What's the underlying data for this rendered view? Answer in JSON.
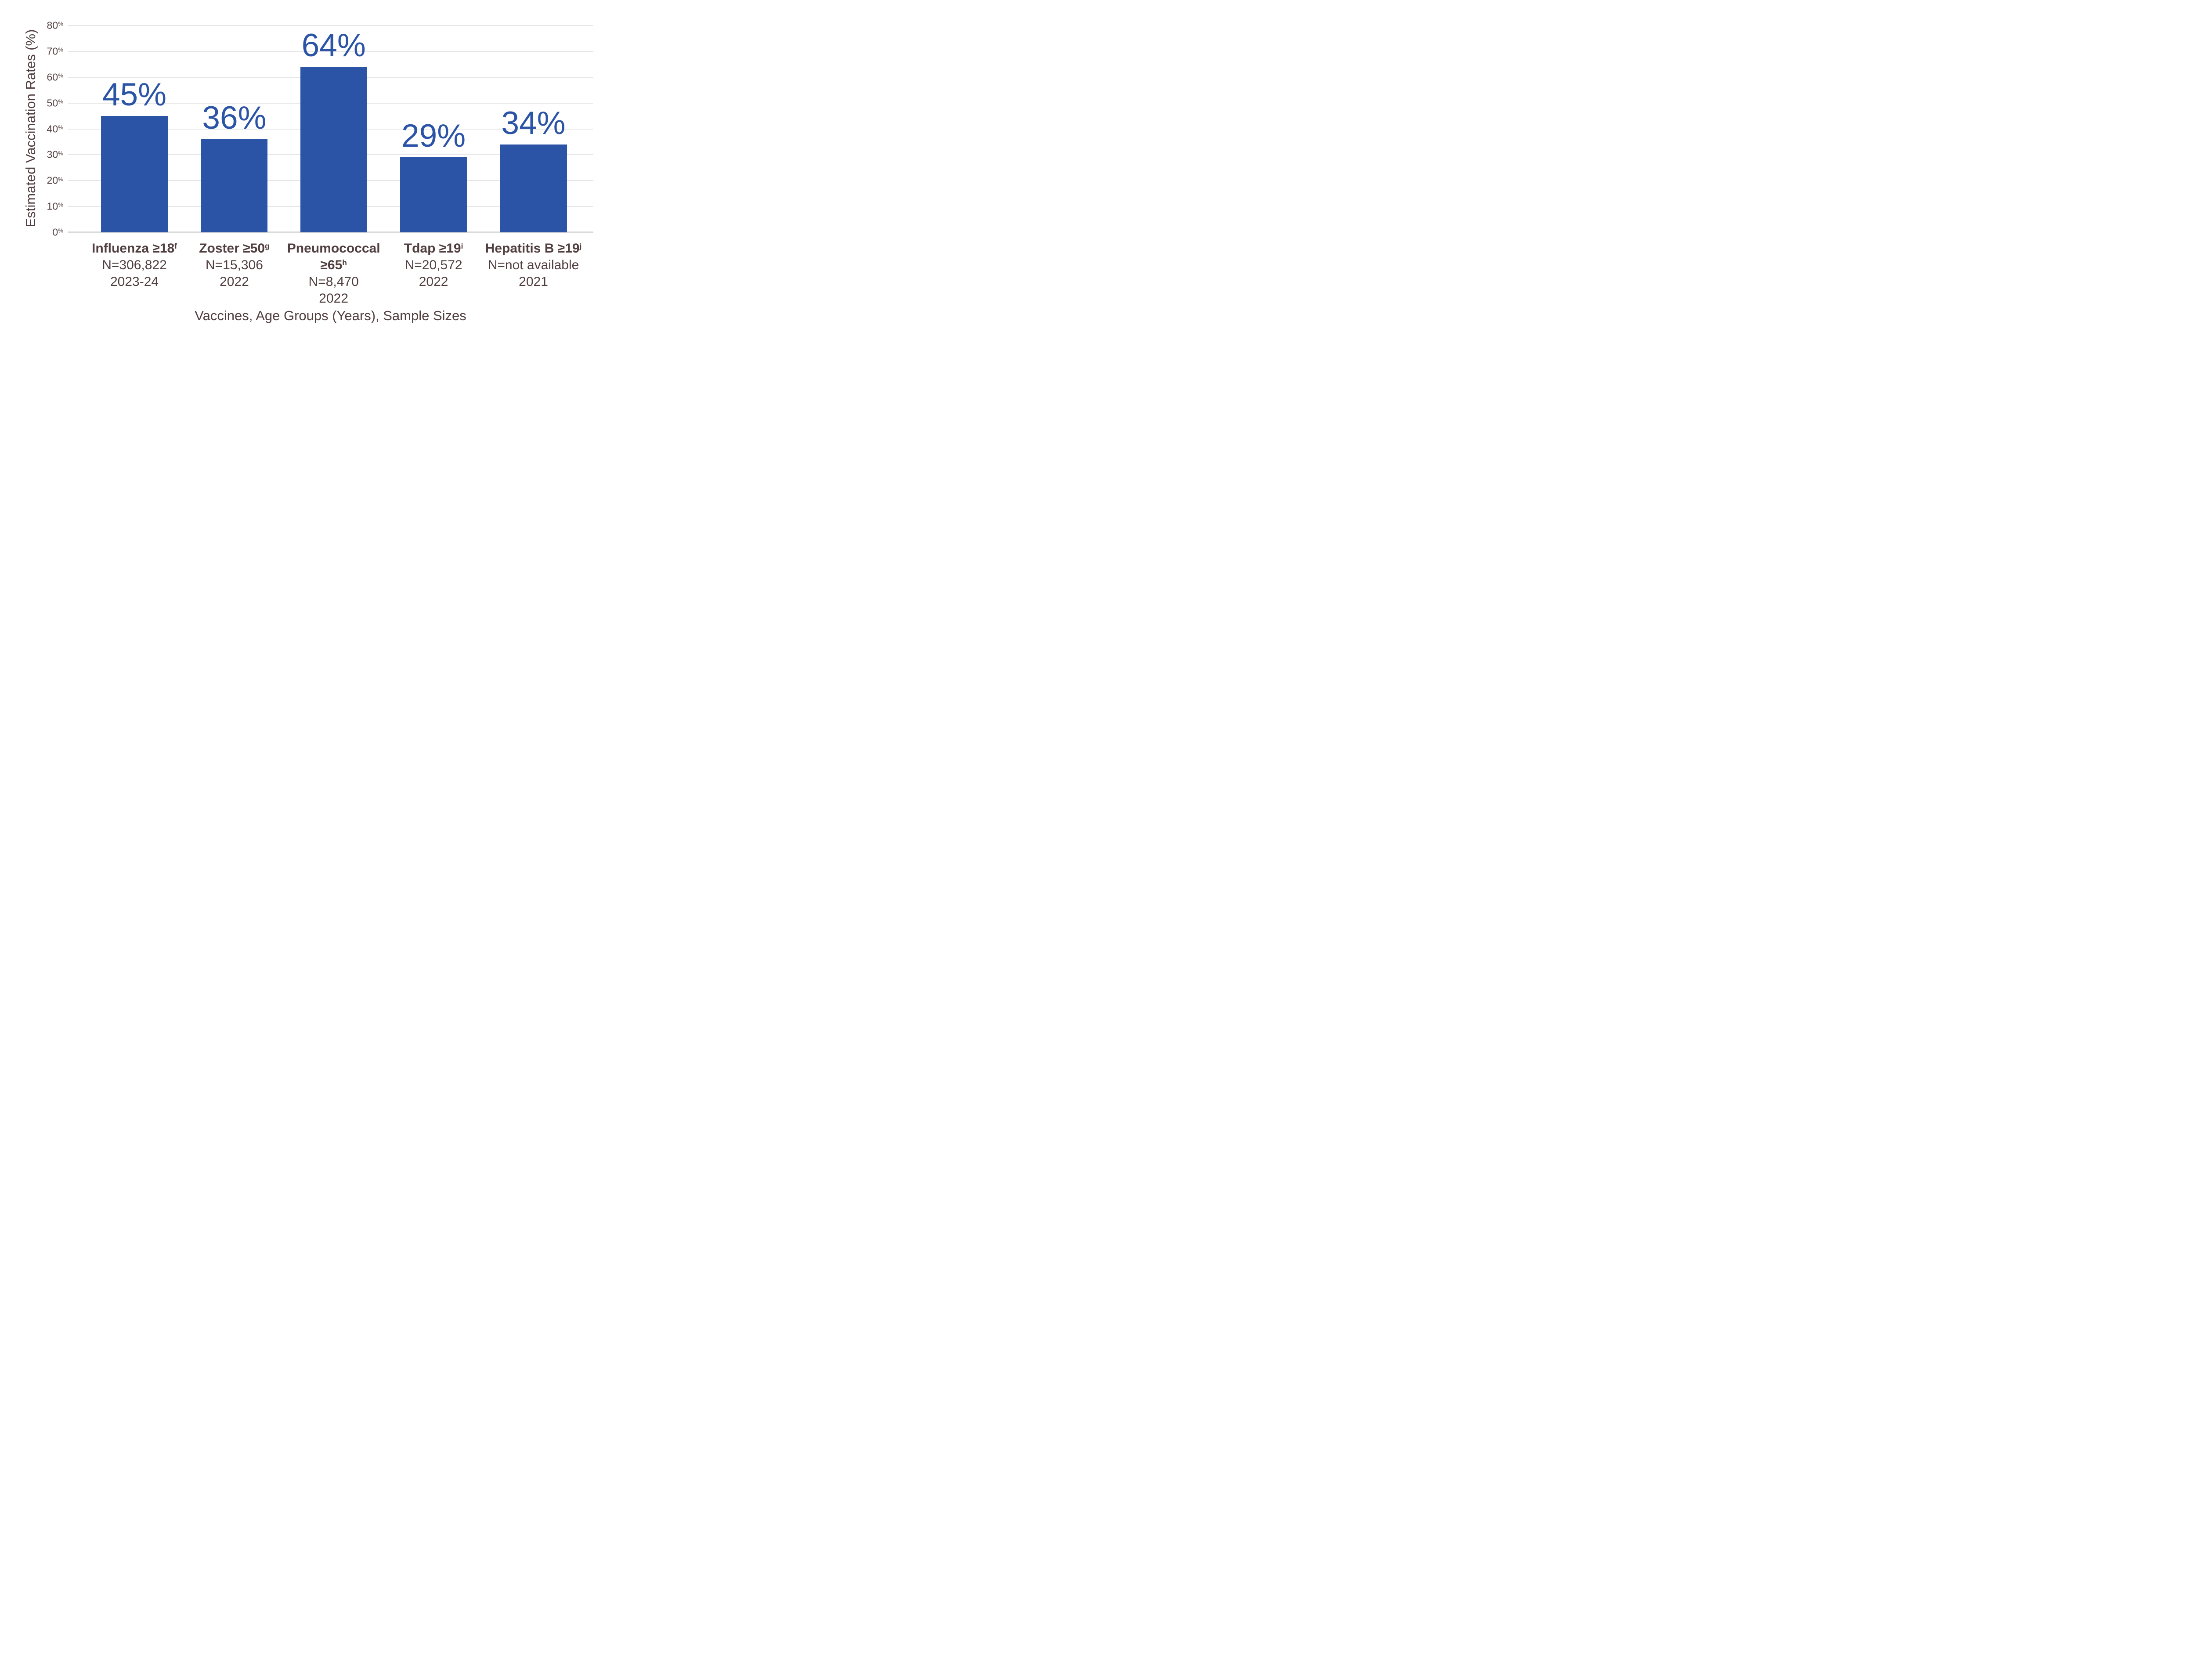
{
  "chart_data": {
    "type": "bar",
    "title": "",
    "ylabel": "Estimated Vaccination Rates (%)",
    "xlabel": "Vaccines, Age Groups (Years), Sample Sizes",
    "ylim": [
      0,
      80
    ],
    "yticks": [
      0,
      10,
      20,
      30,
      40,
      50,
      60,
      70,
      80
    ],
    "ytick_suffix": "%",
    "grid": true,
    "legend": false,
    "colors": {
      "bar": "#2b54a6",
      "value_label": "#2b54a6",
      "axis_text": "#513f3f",
      "gridline": "#e7e7e7",
      "baseline": "#dadada",
      "background": "#ffffff"
    },
    "categories": [
      {
        "label_lines": [
          "Influenza ≥18"
        ],
        "footnote": "f",
        "sample": "N=306,822",
        "period": "2023-24",
        "value": 45,
        "value_label": "45%"
      },
      {
        "label_lines": [
          "Zoster ≥50"
        ],
        "footnote": "g",
        "sample": "N=15,306",
        "period": "2022",
        "value": 36,
        "value_label": "36%"
      },
      {
        "label_lines": [
          "Pneumococcal",
          "≥65"
        ],
        "footnote": "h",
        "sample": "N=8,470",
        "period": "2022",
        "value": 64,
        "value_label": "64%"
      },
      {
        "label_lines": [
          "Tdap ≥19"
        ],
        "footnote": "i",
        "sample": "N=20,572",
        "period": "2022",
        "value": 29,
        "value_label": "29%"
      },
      {
        "label_lines": [
          "Hepatitis B ≥19"
        ],
        "footnote": "j",
        "sample": "N=not available",
        "period": "2021",
        "value": 34,
        "value_label": "34%"
      }
    ]
  }
}
